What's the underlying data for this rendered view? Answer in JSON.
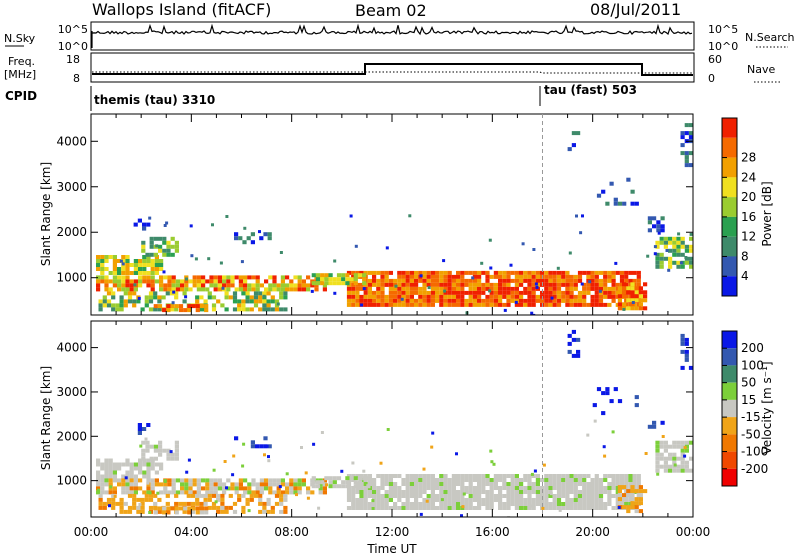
{
  "header": {
    "title": "Wallops Island (fitACF)",
    "beam": "Beam 02",
    "date": "08/Jul/2011"
  },
  "strips": {
    "nsky": {
      "label": "N.Sky",
      "ticks": [
        "10^5",
        "10^0"
      ],
      "right_label": "N.Search",
      "right_ticks": [
        "10^5",
        "10^0"
      ]
    },
    "freq": {
      "label_line1": "Freq.",
      "label_line2": "[MHz]",
      "ticks": [
        "18",
        "8"
      ],
      "right_label": "Nave",
      "right_ticks": [
        "60",
        "0"
      ]
    },
    "cpid": {
      "label": "CPID",
      "segments": [
        {
          "name": "themis (tau) 3310",
          "start_hour": 0
        },
        {
          "name": "tau (fast) 503",
          "start_hour": 18
        }
      ]
    }
  },
  "colors": {
    "power": [
      "#0a18e6",
      "#3358b0",
      "#3e8a6a",
      "#2aa050",
      "#9acc30",
      "#f0e020",
      "#f2a000",
      "#f56a00",
      "#f02000"
    ],
    "velocity": [
      "#0a18e6",
      "#3358b0",
      "#3e8a6a",
      "#7ccf3a",
      "#c8c8c2",
      "#f0a418",
      "#f07800",
      "#f04800",
      "#f00000"
    ],
    "gray": "#c8c8c2"
  },
  "chart_data": [
    {
      "type": "heatmap",
      "name": "power",
      "xlabel": "",
      "ylabel": "Slant Range [km]",
      "xlim": [
        0,
        24
      ],
      "ylim": [
        180,
        4600
      ],
      "yticks": [
        1000,
        2000,
        3000,
        4000
      ],
      "colorbar": {
        "label": "Power [dB]",
        "ticks": [
          "4",
          "8",
          "12",
          "16",
          "20",
          "24",
          "28"
        ],
        "range": [
          0,
          30
        ]
      },
      "marker_line_hour": 18
    },
    {
      "type": "heatmap",
      "name": "velocity",
      "xlabel": "Time UT",
      "ylabel": "Slant Range [km]",
      "xlim": [
        0,
        24
      ],
      "ylim": [
        180,
        4600
      ],
      "yticks": [
        1000,
        2000,
        3000,
        4000
      ],
      "xtick_labels": [
        "00:00",
        "04:00",
        "08:00",
        "12:00",
        "16:00",
        "20:00",
        "00:00"
      ],
      "colorbar": {
        "label": "Velocity [m s⁻¹]",
        "ticks": [
          "200",
          "100",
          "50",
          "15",
          "-15",
          "-50",
          "-100",
          "-200"
        ],
        "range": [
          -250,
          250
        ]
      },
      "marker_line_hour": 18
    }
  ]
}
